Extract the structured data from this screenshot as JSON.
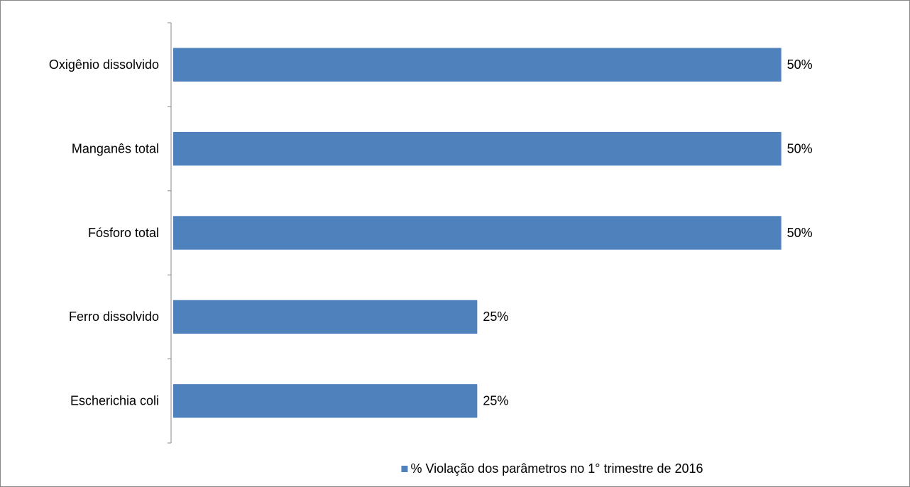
{
  "chart_data": {
    "type": "bar",
    "orientation": "horizontal",
    "categories": [
      "Oxigênio dissolvido",
      "Manganês total",
      "Fósforo total",
      "Ferro dissolvido",
      "Escherichia coli"
    ],
    "series": [
      {
        "name": "% Violação dos parâmetros no 1° trimestre de 2016",
        "color": "#4f81bd",
        "values": [
          50,
          50,
          50,
          25,
          25
        ],
        "value_labels": [
          "50%",
          "50%",
          "50%",
          "25%",
          "25%"
        ]
      }
    ],
    "xlim": [
      0,
      60
    ],
    "legend": "bottom"
  }
}
